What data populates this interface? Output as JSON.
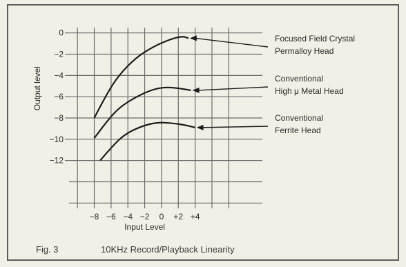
{
  "chart_data": {
    "type": "line",
    "xlabel": "Input Level",
    "ylabel": "Output level",
    "xlim": [
      -11,
      12
    ],
    "ylim": [
      -16.5,
      0.5
    ],
    "x_ticks": [
      -8,
      -6,
      -4,
      -2,
      0,
      2,
      4
    ],
    "x_tick_labels": [
      "−8",
      "−6",
      "−4",
      "−2",
      "0",
      "+2",
      "+4"
    ],
    "y_ticks": [
      0,
      -2,
      -4,
      -6,
      -8,
      -10,
      -12
    ],
    "y_tick_labels": [
      "0",
      "−2",
      "−4",
      "−6",
      "−8",
      "−10",
      "−12"
    ],
    "x_grid": [
      -10,
      -8,
      -6,
      -4,
      -2,
      0,
      2,
      4,
      6,
      8
    ],
    "y_grid": [
      0,
      -2,
      -4,
      -6,
      -8,
      -10,
      -12,
      -14,
      -16
    ],
    "grid": true,
    "series": [
      {
        "name": "Focused Field Crystal Permalloy Head",
        "label_lines": [
          "Focused Field Crystal",
          "Permalloy Head"
        ],
        "points": [
          [
            -8,
            -8.0
          ],
          [
            -6.5,
            -5.7
          ],
          [
            -5,
            -3.9
          ],
          [
            -3,
            -2.3
          ],
          [
            -1,
            -1.3
          ],
          [
            1,
            -0.6
          ],
          [
            2.5,
            -0.3
          ],
          [
            3.2,
            -0.5
          ]
        ]
      },
      {
        "name": "Conventional High μ Metal Head",
        "label_lines": [
          "Conventional",
          "High μ Metal Head"
        ],
        "points": [
          [
            -8,
            -9.9
          ],
          [
            -6.5,
            -8.3
          ],
          [
            -5,
            -7.0
          ],
          [
            -3,
            -6.0
          ],
          [
            -1,
            -5.3
          ],
          [
            0.5,
            -5.1
          ],
          [
            2,
            -5.2
          ],
          [
            3.5,
            -5.4
          ]
        ]
      },
      {
        "name": "Conventional Ferrite Head",
        "label_lines": [
          "Conventional",
          "Ferrite Head"
        ],
        "points": [
          [
            -7.3,
            -12.0
          ],
          [
            -6,
            -10.8
          ],
          [
            -4.5,
            -9.6
          ],
          [
            -2.5,
            -8.8
          ],
          [
            -0.5,
            -8.4
          ],
          [
            1.5,
            -8.5
          ],
          [
            3,
            -8.7
          ],
          [
            4,
            -8.9
          ]
        ]
      }
    ]
  },
  "caption": {
    "fig_number": "Fig. 3",
    "title": "10KHz Record/Playback Linearity"
  },
  "colors": {
    "background": "#f1efe6",
    "grid": "#6a6a6a",
    "curve": "#1c1c1c",
    "text": "#2a2a2a"
  }
}
